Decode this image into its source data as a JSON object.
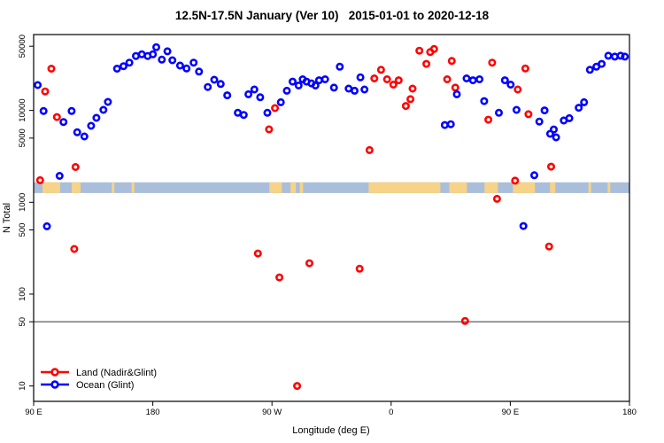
{
  "title": "12.5N-17.5N January (Ver 10)   2015-01-01 to 2020-12-18",
  "legend": {
    "items": [
      {
        "label": "Land (Nadir&Glint)",
        "color": "#ff0000"
      },
      {
        "label": "Ocean (Glint)",
        "color": "#0000ff"
      }
    ]
  },
  "chart_data": {
    "type": "scatter",
    "title": "12.5N-17.5N January (Ver 10)   2015-01-01 to 2020-12-18",
    "xlabel": "Longitude (deg E)",
    "ylabel": "N Total",
    "x_axis": {
      "range": [
        0,
        450
      ],
      "tick_values": [
        0,
        90,
        180,
        270,
        360,
        450
      ],
      "tick_labels": [
        "90 E",
        "180",
        "90 W",
        "0",
        "90 E",
        "180"
      ],
      "note": "longitude axis starts at 90E, wraps eastward through 180, 90W, 0, 90E to 180 (450 deg total)"
    },
    "y_axis": {
      "scale": "log",
      "range": [
        6.8,
        67000
      ],
      "tick_values": [
        10,
        50,
        100,
        500,
        1000,
        5000,
        10000,
        50000
      ],
      "tick_labels": [
        "10",
        "50",
        "100",
        "500",
        "1000",
        "5000",
        "10000",
        "50000"
      ]
    },
    "reference_line_y": 50,
    "grid": false,
    "legend_position": "bottom-left-inside",
    "map_strip": {
      "description": "world-map land/ocean band for 12.5N-17.5N drawn across the plot",
      "n_bottom": 1260,
      "n_top": 1650,
      "ocean_color": "#a9bedb",
      "land_color": "#f7d387",
      "land_segments_deg": [
        [
          6.7,
          20
        ],
        [
          28.7,
          35.4
        ],
        [
          59,
          61
        ],
        [
          74,
          76
        ],
        [
          178,
          187.5
        ],
        [
          194,
          198
        ],
        [
          201,
          203.5
        ],
        [
          253,
          307.2
        ],
        [
          313.9,
          327.2
        ],
        [
          340.5,
          350.6
        ],
        [
          362,
          378.6
        ],
        [
          390,
          394
        ],
        [
          419,
          421
        ],
        [
          433.5,
          435.5
        ]
      ]
    },
    "series": [
      {
        "name": "Land (Nadir&Glint)",
        "color": "#ff0000",
        "points": [
          [
            8.7,
            16100
          ],
          [
            13.4,
            28500
          ],
          [
            17.6,
            8470
          ],
          [
            4.9,
            1740
          ],
          [
            31.6,
            2420
          ],
          [
            30.7,
            310
          ],
          [
            177.8,
            6220
          ],
          [
            182.3,
            10600
          ],
          [
            169.4,
            277
          ],
          [
            185.6,
            152
          ],
          [
            208.3,
            217
          ],
          [
            246.2,
            189
          ],
          [
            199,
            10
          ],
          [
            253.7,
            3700
          ],
          [
            257.3,
            22300
          ],
          [
            262.4,
            27700
          ],
          [
            266.9,
            21800
          ],
          [
            271.7,
            19100
          ],
          [
            275.7,
            21300
          ],
          [
            281.1,
            11180
          ],
          [
            284.6,
            13280
          ],
          [
            286.2,
            17300
          ],
          [
            291.3,
            44700
          ],
          [
            296.6,
            32100
          ],
          [
            299.5,
            43300
          ],
          [
            302.4,
            46700
          ],
          [
            312.3,
            21800
          ],
          [
            315.8,
            34600
          ],
          [
            318.5,
            17700
          ],
          [
            325.8,
            51
          ],
          [
            343.4,
            7920
          ],
          [
            346.3,
            33100
          ],
          [
            350,
            1090
          ],
          [
            363.6,
            1720
          ],
          [
            365.6,
            16900
          ],
          [
            371.4,
            28600
          ],
          [
            373.7,
            9100
          ],
          [
            390.8,
            2440
          ],
          [
            389.3,
            330
          ]
        ]
      },
      {
        "name": "Ocean (Glint)",
        "color": "#0000ff",
        "points": [
          [
            3.1,
            18900
          ],
          [
            7.5,
            9850
          ],
          [
            19.6,
            1940
          ],
          [
            22.5,
            7480
          ],
          [
            28.7,
            9850
          ],
          [
            32.9,
            5780
          ],
          [
            38.3,
            5210
          ],
          [
            43.4,
            6800
          ],
          [
            47.4,
            8300
          ],
          [
            52.7,
            10140
          ],
          [
            56.1,
            12380
          ],
          [
            63,
            28500
          ],
          [
            67.9,
            30300
          ],
          [
            72.3,
            33100
          ],
          [
            77.2,
            39100
          ],
          [
            81.7,
            40800
          ],
          [
            86.1,
            39100
          ],
          [
            90.1,
            40800
          ],
          [
            92.6,
            48800
          ],
          [
            96.8,
            35700
          ],
          [
            101,
            44000
          ],
          [
            104.8,
            35200
          ],
          [
            110.6,
            30800
          ],
          [
            115.5,
            28600
          ],
          [
            120.8,
            33100
          ],
          [
            124.9,
            26500
          ],
          [
            131.5,
            18000
          ],
          [
            136.4,
            21600
          ],
          [
            141.3,
            19400
          ],
          [
            146.2,
            14600
          ],
          [
            154.2,
            9430
          ],
          [
            158.7,
            8940
          ],
          [
            162.2,
            15000
          ],
          [
            166.7,
            16900
          ],
          [
            171.1,
            13900
          ],
          [
            176.5,
            9430
          ],
          [
            186.7,
            12270
          ],
          [
            191.2,
            16400
          ],
          [
            195.6,
            20600
          ],
          [
            200.1,
            18700
          ],
          [
            203.2,
            21800
          ],
          [
            206.1,
            20600
          ],
          [
            209.8,
            19700
          ],
          [
            212.8,
            18700
          ],
          [
            215.6,
            21300
          ],
          [
            220.1,
            21800
          ],
          [
            226.8,
            17700
          ],
          [
            231.2,
            29900
          ],
          [
            237.9,
            17300
          ],
          [
            242.4,
            16400
          ],
          [
            246.8,
            22900
          ],
          [
            249.9,
            16900
          ],
          [
            310.5,
            6930
          ],
          [
            315.1,
            7080
          ],
          [
            319.6,
            15000
          ],
          [
            327,
            22300
          ],
          [
            331.8,
            21300
          ],
          [
            336.7,
            21800
          ],
          [
            340.3,
            12640
          ],
          [
            351.4,
            9430
          ],
          [
            355.9,
            21300
          ],
          [
            360.3,
            19100
          ],
          [
            364.7,
            10140
          ],
          [
            369.9,
            551
          ],
          [
            378.1,
            1970
          ],
          [
            381.9,
            7560
          ],
          [
            385.9,
            10000
          ],
          [
            390.1,
            5570
          ],
          [
            394.6,
            5090
          ],
          [
            392.8,
            6210
          ],
          [
            400.4,
            7770
          ],
          [
            404.6,
            8230
          ],
          [
            411.7,
            10700
          ],
          [
            415.7,
            12270
          ],
          [
            420.1,
            27700
          ],
          [
            425,
            29900
          ],
          [
            429,
            32100
          ],
          [
            434,
            39400
          ],
          [
            438.9,
            38500
          ],
          [
            443.3,
            39400
          ],
          [
            446.5,
            38500
          ],
          [
            10,
            548
          ]
        ]
      }
    ]
  }
}
